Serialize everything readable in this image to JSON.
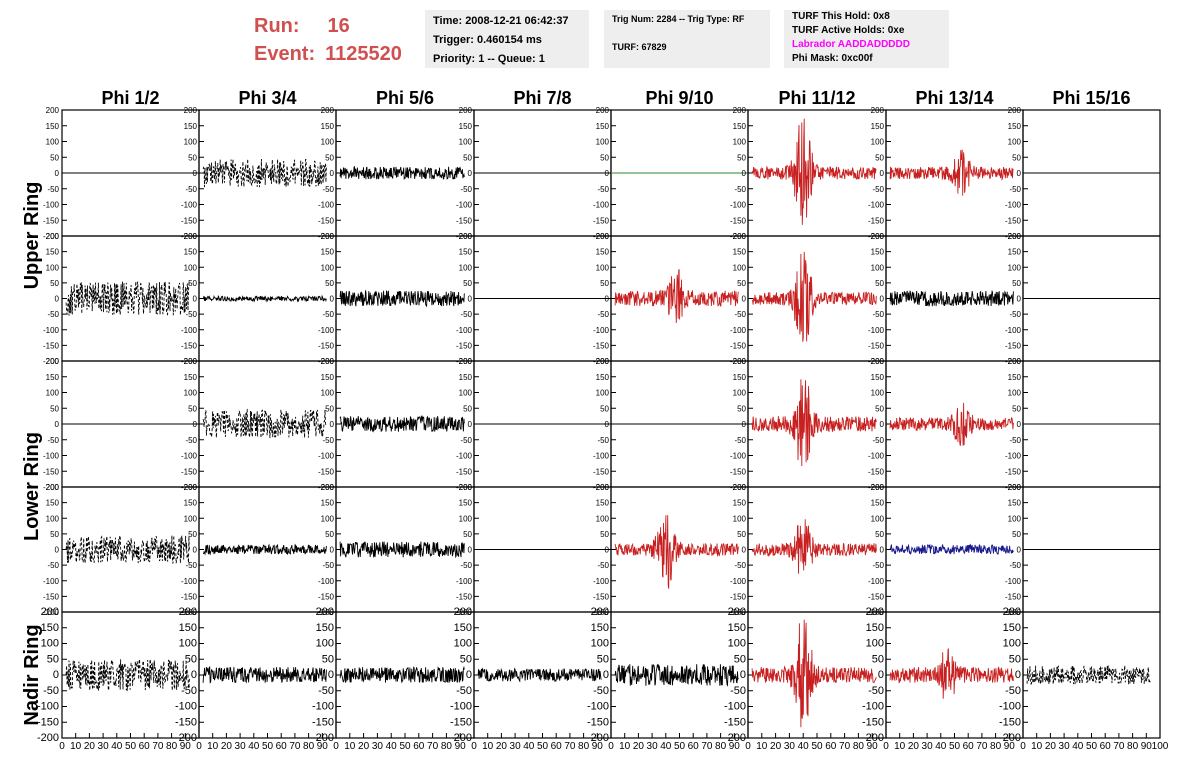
{
  "header": {
    "run_label": "Run:",
    "run_value": "16",
    "event_label": "Event:",
    "event_value": "1125520",
    "time": "Time: 2008-12-21 06:42:37",
    "trigger": "Trigger: 0.460154 ms",
    "priority": "Priority: 1 -- Queue: 1",
    "trig_num": "Trig Num: 2284 -- Trig Type: RF",
    "turf": "TURF: 67829",
    "turf_hold": "TURF This Hold: 0x8",
    "turf_active": "TURF Active Holds: 0xe",
    "labrador": "Labrador AADDADDDDD",
    "phi_mask": "Phi Mask: 0xc00f"
  },
  "colors": {
    "header_red": "#d05050",
    "labrador": "#ff00ff",
    "info_bg": "#eeeeee",
    "trace_black": "#000000",
    "trace_red": "#c82020",
    "trace_blue": "#1a1a8c",
    "trace_green": "#2a8a2a"
  },
  "chart_data": {
    "type": "line",
    "columns": [
      "Phi 1/2",
      "Phi 3/4",
      "Phi 5/6",
      "Phi 7/8",
      "Phi 9/10",
      "Phi 11/12",
      "Phi 13/14",
      "Phi 15/16"
    ],
    "row_labels": [
      "Upper Ring",
      "Lower Ring",
      "Nadir Ring"
    ],
    "ylim": [
      -200,
      200
    ],
    "yticks": [
      -200,
      -150,
      -100,
      -50,
      0,
      50,
      100,
      150,
      200
    ],
    "xlim": [
      0,
      100
    ],
    "xticks": [
      0,
      10,
      20,
      30,
      40,
      50,
      60,
      70,
      80,
      90,
      100
    ],
    "grid": false,
    "panels": [
      [
        {
          "style": "flat",
          "color": "black"
        },
        {
          "style": "dash",
          "color": "black",
          "amp": 45,
          "pulse": false
        },
        {
          "style": "noise",
          "color": "black",
          "amp": 20,
          "pulse": false
        },
        {
          "style": "flat",
          "color": "black"
        },
        {
          "style": "flat",
          "color": "green"
        },
        {
          "style": "noise",
          "color": "red",
          "amp": 20,
          "pulse": true,
          "peak": 200,
          "center": 40
        },
        {
          "style": "noise",
          "color": "red",
          "amp": 20,
          "pulse": true,
          "peak": 80,
          "center": 55
        },
        {
          "style": "flat",
          "color": "black"
        }
      ],
      [
        {
          "style": "dash",
          "color": "black",
          "amp": 55,
          "pulse": false
        },
        {
          "style": "noise",
          "color": "black",
          "amp": 8,
          "pulse": false
        },
        {
          "style": "noise",
          "color": "black",
          "amp": 25,
          "pulse": false
        },
        {
          "style": "flat",
          "color": "black"
        },
        {
          "style": "noise",
          "color": "red",
          "amp": 25,
          "pulse": true,
          "peak": 100,
          "center": 48
        },
        {
          "style": "noise",
          "color": "red",
          "amp": 20,
          "pulse": true,
          "peak": 170,
          "center": 40
        },
        {
          "style": "noise",
          "color": "black",
          "amp": 25,
          "pulse": false
        },
        {
          "style": "flat",
          "color": "black"
        }
      ],
      [
        {
          "style": "flat",
          "color": "black"
        },
        {
          "style": "dash",
          "color": "black",
          "amp": 45,
          "pulse": false
        },
        {
          "style": "noise",
          "color": "black",
          "amp": 25,
          "pulse": false
        },
        {
          "style": "flat",
          "color": "black"
        },
        {
          "style": "flat",
          "color": "black"
        },
        {
          "style": "noise",
          "color": "red",
          "amp": 25,
          "pulse": true,
          "peak": 170,
          "center": 40
        },
        {
          "style": "noise",
          "color": "red",
          "amp": 20,
          "pulse": true,
          "peak": 80,
          "center": 55
        },
        {
          "style": "flat",
          "color": "black"
        }
      ],
      [
        {
          "style": "dash",
          "color": "black",
          "amp": 45,
          "pulse": false
        },
        {
          "style": "noise",
          "color": "black",
          "amp": 15,
          "pulse": false
        },
        {
          "style": "noise",
          "color": "black",
          "amp": 25,
          "pulse": false
        },
        {
          "style": "flat",
          "color": "black"
        },
        {
          "style": "noise",
          "color": "red",
          "amp": 20,
          "pulse": true,
          "peak": 140,
          "center": 40
        },
        {
          "style": "noise",
          "color": "red",
          "amp": 20,
          "pulse": true,
          "peak": 110,
          "center": 40
        },
        {
          "style": "noise",
          "color": "blue",
          "amp": 15,
          "pulse": false
        },
        {
          "style": "flat",
          "color": "black"
        }
      ],
      [
        {
          "style": "dash",
          "color": "black",
          "amp": 50,
          "pulse": false
        },
        {
          "style": "noise",
          "color": "black",
          "amp": 25,
          "pulse": false
        },
        {
          "style": "noise",
          "color": "black",
          "amp": 25,
          "pulse": false
        },
        {
          "style": "noise",
          "color": "black",
          "amp": 20,
          "pulse": false
        },
        {
          "style": "noise",
          "color": "black",
          "amp": 35,
          "pulse": false
        },
        {
          "style": "noise",
          "color": "red",
          "amp": 25,
          "pulse": true,
          "peak": 200,
          "center": 40
        },
        {
          "style": "noise",
          "color": "red",
          "amp": 25,
          "pulse": true,
          "peak": 100,
          "center": 45
        },
        {
          "style": "dash",
          "color": "black",
          "amp": 30,
          "pulse": false
        }
      ]
    ]
  }
}
